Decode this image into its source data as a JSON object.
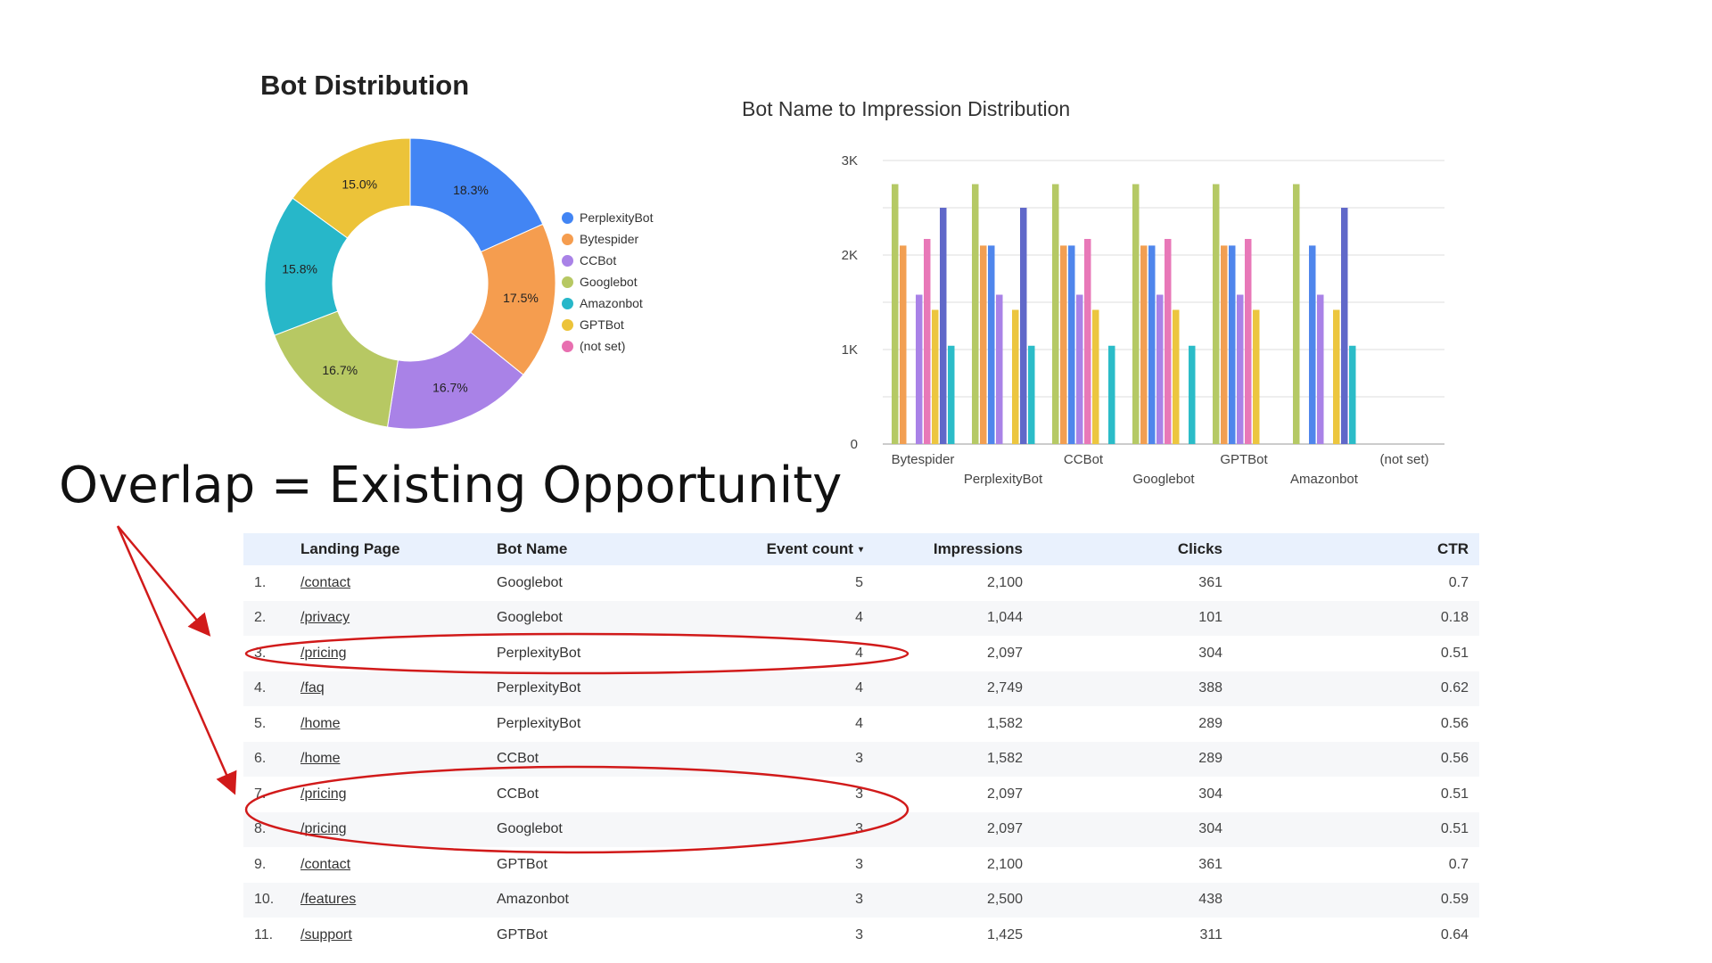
{
  "headline": "Overlap = Existing Opportunity",
  "colors": {
    "annotation": "#d11a1a",
    "header_bg": "#e9f1fd"
  },
  "chart_data": [
    {
      "type": "pie",
      "title": "Bot Distribution",
      "donut": true,
      "legend_position": "right",
      "slices": [
        {
          "label": "PerplexityBot",
          "value": 18.3,
          "display": "18.3%",
          "color": "#4285f4"
        },
        {
          "label": "Bytespider",
          "value": 17.5,
          "display": "17.5%",
          "color": "#f59d4f"
        },
        {
          "label": "CCBot",
          "value": 16.7,
          "display": "16.7%",
          "color": "#a982e7"
        },
        {
          "label": "Googlebot",
          "value": 16.7,
          "display": "16.7%",
          "color": "#b7c863"
        },
        {
          "label": "Amazonbot",
          "value": 15.8,
          "display": "15.8%",
          "color": "#27b7c9"
        },
        {
          "label": "GPTBot",
          "value": 15.0,
          "display": "15.0%",
          "color": "#ecc339"
        },
        {
          "label": "(not set)",
          "value": 0,
          "display": "",
          "color": "#e86fb0"
        }
      ]
    },
    {
      "type": "bar",
      "title": "Bot Name to Impression Distribution",
      "categories": [
        "Bytespider",
        "PerplexityBot",
        "CCBot",
        "Googlebot",
        "GPTBot",
        "Amazonbot",
        "(not set)"
      ],
      "ylim": [
        0,
        3000
      ],
      "yticks": [
        0,
        1000,
        2000,
        3000
      ],
      "ytick_labels": [
        "0",
        "1K",
        "2K",
        "3K"
      ],
      "grid": true,
      "series_colors": [
        "#b5c965",
        "#f29f52",
        "#4f86ec",
        "#a982e7",
        "#e878b8",
        "#ecc63f",
        "#6068c9",
        "#2bbcc8"
      ],
      "groups": [
        [
          2750,
          2100,
          null,
          1580,
          2170,
          1420,
          2500,
          1040
        ],
        [
          2750,
          2100,
          2100,
          1580,
          null,
          1420,
          2500,
          1040
        ],
        [
          2750,
          2100,
          2100,
          1580,
          2170,
          1420,
          null,
          1040
        ],
        [
          2750,
          2100,
          2100,
          1580,
          2170,
          1420,
          null,
          1040
        ],
        [
          2750,
          2100,
          2100,
          1580,
          2170,
          1420,
          null,
          null
        ],
        [
          2750,
          null,
          2100,
          1580,
          null,
          1420,
          2500,
          1040
        ],
        []
      ]
    }
  ],
  "table": {
    "columns": {
      "page": "Landing Page",
      "bot": "Bot Name",
      "events": "Event count",
      "impressions": "Impressions",
      "clicks": "Clicks",
      "ctr": "CTR"
    },
    "rows": [
      {
        "idx": "1.",
        "page": "/contact",
        "bot": "Googlebot",
        "events": "5",
        "impressions": "2,100",
        "clicks": "361",
        "ctr": "0.7"
      },
      {
        "idx": "2.",
        "page": "/privacy",
        "bot": "Googlebot",
        "events": "4",
        "impressions": "1,044",
        "clicks": "101",
        "ctr": "0.18"
      },
      {
        "idx": "3.",
        "page": "/pricing",
        "bot": "PerplexityBot",
        "events": "4",
        "impressions": "2,097",
        "clicks": "304",
        "ctr": "0.51"
      },
      {
        "idx": "4.",
        "page": "/faq",
        "bot": "PerplexityBot",
        "events": "4",
        "impressions": "2,749",
        "clicks": "388",
        "ctr": "0.62"
      },
      {
        "idx": "5.",
        "page": "/home",
        "bot": "PerplexityBot",
        "events": "4",
        "impressions": "1,582",
        "clicks": "289",
        "ctr": "0.56"
      },
      {
        "idx": "6.",
        "page": "/home",
        "bot": "CCBot",
        "events": "3",
        "impressions": "1,582",
        "clicks": "289",
        "ctr": "0.56"
      },
      {
        "idx": "7.",
        "page": "/pricing",
        "bot": "CCBot",
        "events": "3",
        "impressions": "2,097",
        "clicks": "304",
        "ctr": "0.51"
      },
      {
        "idx": "8.",
        "page": "/pricing",
        "bot": "Googlebot",
        "events": "3",
        "impressions": "2,097",
        "clicks": "304",
        "ctr": "0.51"
      },
      {
        "idx": "9.",
        "page": "/contact",
        "bot": "GPTBot",
        "events": "3",
        "impressions": "2,100",
        "clicks": "361",
        "ctr": "0.7"
      },
      {
        "idx": "10.",
        "page": "/features",
        "bot": "Amazonbot",
        "events": "3",
        "impressions": "2,500",
        "clicks": "438",
        "ctr": "0.59"
      },
      {
        "idx": "11.",
        "page": "/support",
        "bot": "GPTBot",
        "events": "3",
        "impressions": "1,425",
        "clicks": "311",
        "ctr": "0.64"
      }
    ]
  }
}
